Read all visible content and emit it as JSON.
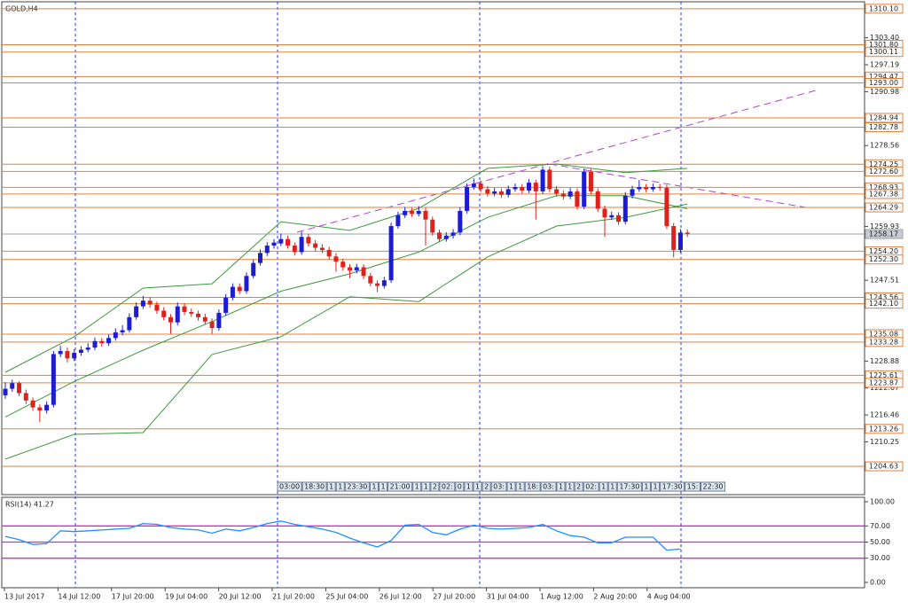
{
  "header": {
    "symbol": "GOLD,H4"
  },
  "chart_data": {
    "type": "candlestick",
    "up_color": "#1c1cd4",
    "down_color": "#e0201b",
    "level_color": "#e0803c",
    "ylim": [
      1198.1,
      1311.7
    ],
    "yticks": [
      {
        "value": 1303.4,
        "label": "1303.40"
      },
      {
        "value": 1297.19,
        "label": "1297.19"
      },
      {
        "value": 1290.98,
        "label": "1290.98"
      },
      {
        "value": 1278.56,
        "label": "1278.56"
      },
      {
        "value": 1259.93,
        "label": "1259.93"
      },
      {
        "value": 1247.51,
        "label": "1247.51"
      },
      {
        "value": 1228.88,
        "label": "1228.88"
      },
      {
        "value": 1222.67,
        "label": "1222.67"
      },
      {
        "value": 1216.46,
        "label": "1216.46"
      },
      {
        "value": 1210.25,
        "label": "1210.25"
      }
    ],
    "levels": [
      {
        "value": 1310.1,
        "label": "1310.10"
      },
      {
        "value": 1301.8,
        "label": "1301.80"
      },
      {
        "value": 1300.11,
        "label": "1300.11"
      },
      {
        "value": 1294.47,
        "label": "1294.47"
      },
      {
        "value": 1293,
        "label": "1293.00"
      },
      {
        "value": 1284.94,
        "label": "1284.94"
      },
      {
        "value": 1282.78,
        "label": "1282.78"
      },
      {
        "value": 1274.25,
        "label": "1274.25"
      },
      {
        "value": 1272.6,
        "label": "1272.60"
      },
      {
        "value": 1268.93,
        "label": "1268.93"
      },
      {
        "value": 1267.38,
        "label": "1267.38"
      },
      {
        "value": 1264.29,
        "label": "1264.29"
      },
      {
        "value": 1254.2,
        "label": "1254.20"
      },
      {
        "value": 1252.3,
        "label": "1252.30"
      },
      {
        "value": 1243.56,
        "label": "1243.56"
      },
      {
        "value": 1242.1,
        "label": "1242.10"
      },
      {
        "value": 1235.08,
        "label": "1235.08"
      },
      {
        "value": 1233.28,
        "label": "1233.28"
      },
      {
        "value": 1225.61,
        "label": "1225.61"
      },
      {
        "value": 1223.87,
        "label": "1223.87"
      },
      {
        "value": 1213.26,
        "label": "1213.26"
      },
      {
        "value": 1204.63,
        "label": "1204.63"
      }
    ],
    "current_price": {
      "value": 1258.17,
      "label": "1258.17"
    },
    "candles": [
      [
        1221.0,
        1224.0,
        1220.2,
        1222.5
      ],
      [
        1222.5,
        1224.6,
        1221.8,
        1223.8
      ],
      [
        1223.8,
        1224.2,
        1220.8,
        1221.5
      ],
      [
        1221.5,
        1222.3,
        1219.0,
        1219.8
      ],
      [
        1219.8,
        1220.5,
        1217.4,
        1218.2
      ],
      [
        1218.2,
        1218.9,
        1214.8,
        1217.5
      ],
      [
        1217.5,
        1219.6,
        1216.8,
        1218.8
      ],
      [
        1218.8,
        1231.2,
        1218.2,
        1230.5
      ],
      [
        1230.5,
        1232.4,
        1229.8,
        1231.2
      ],
      [
        1231.2,
        1232.0,
        1228.6,
        1229.5
      ],
      [
        1229.5,
        1231.6,
        1228.9,
        1230.8
      ],
      [
        1230.8,
        1232.3,
        1230.1,
        1231.5
      ],
      [
        1231.5,
        1233.0,
        1230.9,
        1232.0
      ],
      [
        1232.0,
        1234.3,
        1231.4,
        1233.5
      ],
      [
        1233.5,
        1234.2,
        1232.2,
        1233.0
      ],
      [
        1233.0,
        1235.0,
        1232.4,
        1234.2
      ],
      [
        1234.2,
        1236.4,
        1233.6,
        1235.5
      ],
      [
        1235.5,
        1237.2,
        1234.8,
        1236.0
      ],
      [
        1236.0,
        1239.9,
        1235.5,
        1239.0
      ],
      [
        1239.0,
        1242.4,
        1238.4,
        1241.5
      ],
      [
        1241.5,
        1243.9,
        1240.9,
        1242.8
      ],
      [
        1242.8,
        1243.6,
        1241.2,
        1241.9
      ],
      [
        1241.9,
        1242.6,
        1239.8,
        1240.5
      ],
      [
        1240.5,
        1241.3,
        1238.3,
        1239.0
      ],
      [
        1239.0,
        1239.7,
        1235.2,
        1237.8
      ],
      [
        1237.8,
        1242.4,
        1237.1,
        1241.5
      ],
      [
        1241.5,
        1242.2,
        1239.5,
        1240.2
      ],
      [
        1240.2,
        1241.0,
        1239.1,
        1239.8
      ],
      [
        1239.8,
        1240.5,
        1238.2,
        1239.0
      ],
      [
        1239.0,
        1239.8,
        1237.3,
        1238.0
      ],
      [
        1238.0,
        1238.7,
        1235.2,
        1236.5
      ],
      [
        1236.5,
        1240.8,
        1235.9,
        1240.0
      ],
      [
        1240.0,
        1244.3,
        1239.4,
        1243.5
      ],
      [
        1243.5,
        1246.8,
        1242.9,
        1246.0
      ],
      [
        1246.0,
        1246.8,
        1244.3,
        1245.0
      ],
      [
        1245.0,
        1249.3,
        1244.4,
        1248.5
      ],
      [
        1248.5,
        1252.3,
        1247.9,
        1251.5
      ],
      [
        1251.5,
        1254.6,
        1250.9,
        1253.8
      ],
      [
        1253.8,
        1256.3,
        1253.1,
        1255.5
      ],
      [
        1255.5,
        1257.0,
        1254.8,
        1256.2
      ],
      [
        1256.0,
        1258.3,
        1255.4,
        1257.0
      ],
      [
        1257.0,
        1257.8,
        1254.8,
        1255.5
      ],
      [
        1255.5,
        1256.2,
        1253.2,
        1254.0
      ],
      [
        1254.0,
        1258.7,
        1253.4,
        1257.5
      ],
      [
        1257.5,
        1258.2,
        1255.3,
        1256.0
      ],
      [
        1256.0,
        1256.8,
        1254.2,
        1255.0
      ],
      [
        1255.0,
        1255.8,
        1253.8,
        1254.5
      ],
      [
        1254.5,
        1255.2,
        1252.2,
        1253.0
      ],
      [
        1253.0,
        1253.8,
        1249.5,
        1251.8
      ],
      [
        1251.8,
        1252.5,
        1249.8,
        1250.5
      ],
      [
        1250.5,
        1251.2,
        1248.0,
        1249.8
      ],
      [
        1249.8,
        1251.3,
        1249.1,
        1250.5
      ],
      [
        1250.5,
        1251.2,
        1247.8,
        1248.5
      ],
      [
        1248.5,
        1249.2,
        1246.1,
        1246.8
      ],
      [
        1246.8,
        1247.5,
        1244.8,
        1246.2
      ],
      [
        1246.2,
        1248.3,
        1245.6,
        1247.5
      ],
      [
        1247.5,
        1260.8,
        1246.9,
        1260.0
      ],
      [
        1260.0,
        1263.3,
        1259.4,
        1262.5
      ],
      [
        1262.5,
        1264.4,
        1261.9,
        1263.5
      ],
      [
        1263.5,
        1264.2,
        1262.1,
        1262.8
      ],
      [
        1262.8,
        1264.6,
        1262.2,
        1263.5
      ],
      [
        1263.5,
        1264.2,
        1255.5,
        1261.5
      ],
      [
        1261.5,
        1262.2,
        1257.8,
        1258.5
      ],
      [
        1258.5,
        1259.2,
        1256.3,
        1257.0
      ],
      [
        1257.0,
        1258.6,
        1256.4,
        1257.8
      ],
      [
        1257.8,
        1259.3,
        1257.1,
        1258.5
      ],
      [
        1258.5,
        1264.3,
        1257.9,
        1263.5
      ],
      [
        1263.5,
        1269.8,
        1262.9,
        1269.0
      ],
      [
        1269.0,
        1271.0,
        1268.4,
        1269.8
      ],
      [
        1269.8,
        1270.5,
        1267.8,
        1268.5
      ],
      [
        1268.5,
        1269.2,
        1266.8,
        1267.5
      ],
      [
        1267.5,
        1268.8,
        1266.9,
        1268.0
      ],
      [
        1268.0,
        1268.7,
        1266.5,
        1267.2
      ],
      [
        1267.2,
        1269.3,
        1266.6,
        1268.5
      ],
      [
        1268.5,
        1269.8,
        1267.9,
        1269.0
      ],
      [
        1269.0,
        1269.7,
        1267.5,
        1268.2
      ],
      [
        1268.2,
        1270.8,
        1267.6,
        1270.0
      ],
      [
        1270.0,
        1270.7,
        1261.5,
        1268.0
      ],
      [
        1268.0,
        1273.8,
        1267.4,
        1273.0
      ],
      [
        1273.0,
        1273.7,
        1267.8,
        1268.5
      ],
      [
        1268.5,
        1269.2,
        1266.8,
        1267.5
      ],
      [
        1267.5,
        1268.2,
        1266.1,
        1266.8
      ],
      [
        1266.8,
        1268.8,
        1266.2,
        1268.0
      ],
      [
        1268.0,
        1268.7,
        1263.8,
        1264.5
      ],
      [
        1264.5,
        1273.3,
        1263.9,
        1272.5
      ],
      [
        1272.5,
        1273.2,
        1267.3,
        1268.0
      ],
      [
        1268.0,
        1268.7,
        1263.3,
        1264.0
      ],
      [
        1264.0,
        1264.7,
        1257.5,
        1262.0
      ],
      [
        1262.0,
        1263.3,
        1261.4,
        1262.5
      ],
      [
        1262.5,
        1263.2,
        1260.3,
        1261.0
      ],
      [
        1261.0,
        1267.8,
        1260.4,
        1267.0
      ],
      [
        1267.0,
        1269.3,
        1266.4,
        1268.5
      ],
      [
        1268.5,
        1270.6,
        1267.9,
        1269.0
      ],
      [
        1269.0,
        1269.7,
        1267.8,
        1268.5
      ],
      [
        1268.5,
        1269.8,
        1267.9,
        1269.0
      ],
      [
        1269.0,
        1269.7,
        1268.1,
        1268.8
      ],
      [
        1268.8,
        1269.5,
        1259.3,
        1260.0
      ],
      [
        1260.0,
        1260.7,
        1252.8,
        1254.5
      ],
      [
        1254.5,
        1259.3,
        1253.9,
        1258.5
      ],
      [
        1258.5,
        1259.2,
        1257.5,
        1258.2
      ]
    ],
    "bands": {
      "color": "#3c9a3c",
      "x": [
        0,
        10,
        20,
        30,
        40,
        50,
        60,
        70,
        80,
        90,
        99
      ],
      "upper": [
        1226.3,
        1234.5,
        1245.7,
        1246.7,
        1261,
        1259,
        1264.1,
        1273.3,
        1274.3,
        1272.3,
        1273.3
      ],
      "middle": [
        1216,
        1224.2,
        1231.4,
        1238,
        1245,
        1249,
        1254,
        1262,
        1267,
        1267,
        1264
      ],
      "lower": [
        1206.3,
        1212,
        1212.4,
        1230.4,
        1234.5,
        1243.7,
        1242.6,
        1252.9,
        1260,
        1262,
        1265.1
      ]
    },
    "time_markers": [
      "03:00",
      "18:30",
      "1",
      "1",
      "23:30",
      "1",
      "1",
      "21:00",
      "1",
      "1",
      "2",
      "02:",
      "0",
      "1",
      "1",
      "2",
      "03:",
      "1",
      "1",
      "18:",
      "03:",
      "1",
      "1",
      "2",
      "02:",
      "1",
      "1",
      "17:30",
      "1",
      "1",
      "17:30",
      "15:",
      "22:30"
    ],
    "x_labels": [
      "13 Jul 2017",
      "14 Jul 12:00",
      "17 Jul 20:00",
      "19 Jul 04:00",
      "20 Jul 12:00",
      "21 Jul 20:00",
      "25 Jul 04:00",
      "26 Jul 12:00",
      "27 Jul 20:00",
      "31 Jul 04:00",
      "1 Aug 12:00",
      "2 Aug 20:00",
      "4 Aug 04:00"
    ],
    "rsi": {
      "title": "RSI(14) 41.27",
      "color": "#1e90ff",
      "level_color": "#e020e0",
      "ylim": [
        0,
        100
      ],
      "yticks": [
        {
          "value": 100,
          "label": "100.00"
        },
        {
          "value": 70,
          "label": "70.00"
        },
        {
          "value": 50,
          "label": "50.00"
        },
        {
          "value": 30,
          "label": "30.00"
        },
        {
          "value": 0,
          "label": "0.00"
        }
      ],
      "levels": [
        70,
        50,
        30
      ],
      "values": [
        57,
        53,
        47,
        48,
        64,
        63,
        64,
        65,
        66,
        67,
        73,
        72,
        68,
        66,
        65,
        61,
        66,
        64,
        68,
        73,
        76,
        72,
        69,
        66,
        62,
        55,
        49,
        44,
        52,
        71,
        72,
        62,
        59,
        66,
        71,
        67,
        66,
        67,
        68,
        72,
        64,
        58,
        56,
        49,
        49,
        56,
        56,
        56,
        40,
        41.27
      ]
    }
  }
}
